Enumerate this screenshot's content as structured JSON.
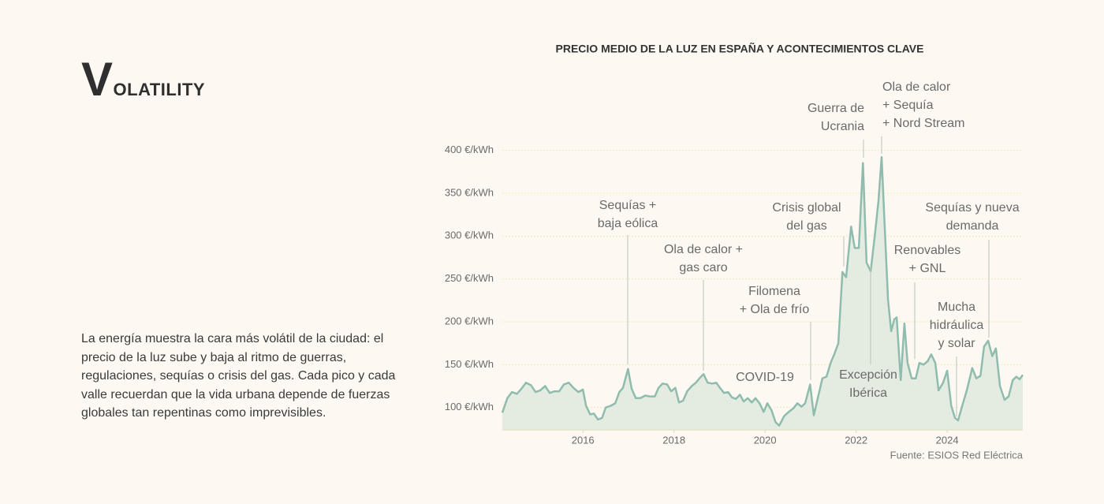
{
  "heading": "VOLATILITY",
  "paragraph": "La energía muestra la cara más volátil de la ciudad: el precio de la luz sube y baja al ritmo de guerras, regulaciones, sequías o crisis del gas. Cada pico y cada valle recuerdan que la vida urbana depende de fuerzas globales tan repentinas como imprevisibles.",
  "chart_data": {
    "type": "area",
    "title": "PRECIO MEDIO DE LA LUZ EN ESPAÑA Y ACONTECIMIENTOS CLAVE",
    "source": "Fuente: ESIOS Red Eléctrica",
    "color": "#8fbcae",
    "fill": "#e4ebe1",
    "grid": true,
    "xlim": [
      2014.23,
      2025.66
    ],
    "xticks": [
      2016,
      2018,
      2020,
      2022,
      2024
    ],
    "ylim": [
      74,
      405
    ],
    "yticks": [
      {
        "value": 100,
        "label": "100 €/kWh"
      },
      {
        "value": 150,
        "label": "150 €/kWh"
      },
      {
        "value": 200,
        "label": "200 €/kWh"
      },
      {
        "value": 250,
        "label": "250 €/kWh"
      },
      {
        "value": 300,
        "label": "300 €/kWh"
      },
      {
        "value": 350,
        "label": "350 €/kWh"
      },
      {
        "value": 400,
        "label": "400 €/kWh"
      }
    ],
    "x": [
      2014.23,
      2014.34,
      2014.44,
      2014.55,
      2014.65,
      2014.75,
      2014.86,
      2014.96,
      2015.06,
      2015.17,
      2015.27,
      2015.38,
      2015.48,
      2015.58,
      2015.69,
      2015.79,
      2015.9,
      2016.0,
      2016.07,
      2016.16,
      2016.24,
      2016.33,
      2016.42,
      2016.5,
      2016.61,
      2016.71,
      2016.8,
      2016.88,
      2016.99,
      2017.07,
      2017.16,
      2017.26,
      2017.37,
      2017.47,
      2017.58,
      2017.66,
      2017.75,
      2017.85,
      2017.94,
      2018.03,
      2018.11,
      2018.2,
      2018.29,
      2018.39,
      2018.48,
      2018.56,
      2018.65,
      2018.74,
      2018.84,
      2018.93,
      2019.01,
      2019.1,
      2019.19,
      2019.27,
      2019.36,
      2019.45,
      2019.53,
      2019.62,
      2019.71,
      2019.79,
      2019.88,
      2019.97,
      2020.05,
      2020.14,
      2020.23,
      2020.31,
      2020.42,
      2020.52,
      2020.62,
      2020.71,
      2020.8,
      2020.88,
      2020.99,
      2021.07,
      2021.18,
      2021.26,
      2021.35,
      2021.44,
      2021.52,
      2021.61,
      2021.7,
      2021.78,
      2021.89,
      2021.97,
      2022.06,
      2022.15,
      2022.23,
      2022.32,
      2022.41,
      2022.49,
      2022.56,
      2022.63,
      2022.7,
      2022.77,
      2022.84,
      2022.89,
      2022.98,
      2023.06,
      2023.13,
      2023.22,
      2023.31,
      2023.39,
      2023.48,
      2023.57,
      2023.65,
      2023.74,
      2023.81,
      2023.91,
      2024.0,
      2024.09,
      2024.17,
      2024.24,
      2024.33,
      2024.43,
      2024.55,
      2024.64,
      2024.73,
      2024.81,
      2024.9,
      2024.99,
      2025.07,
      2025.16,
      2025.26,
      2025.35,
      2025.44,
      2025.52,
      2025.59,
      2025.66
    ],
    "values": [
      94,
      111,
      118,
      116,
      122,
      129,
      126,
      118,
      120,
      125,
      117,
      119,
      119,
      127,
      129,
      123,
      118,
      121,
      102,
      92,
      93,
      86,
      88,
      100,
      102,
      105,
      118,
      123,
      145,
      122,
      111,
      111,
      114,
      113,
      113,
      123,
      128,
      127,
      119,
      123,
      106,
      108,
      119,
      125,
      129,
      134,
      139,
      129,
      128,
      129,
      123,
      117,
      118,
      112,
      110,
      115,
      107,
      111,
      106,
      111,
      105,
      95,
      105,
      97,
      83,
      79,
      90,
      95,
      99,
      105,
      101,
      105,
      127,
      91,
      116,
      134,
      136,
      152,
      162,
      175,
      258,
      252,
      311,
      286,
      286,
      385,
      269,
      259,
      300,
      341,
      392,
      309,
      226,
      189,
      203,
      205,
      132,
      198,
      152,
      134,
      134,
      152,
      150,
      154,
      162,
      152,
      120,
      129,
      143,
      102,
      88,
      85,
      102,
      120,
      146,
      134,
      137,
      171,
      178,
      160,
      169,
      125,
      109,
      113,
      132,
      136,
      133,
      138
    ],
    "annotations": [
      {
        "lines": [
          "Sequías +",
          "baja eólica"
        ]
      },
      {
        "lines": [
          "Ola de calor +",
          "gas caro"
        ]
      },
      {
        "lines": [
          "Filomena",
          "+ Ola de frío"
        ]
      },
      {
        "lines": [
          "COVID-19"
        ]
      },
      {
        "lines": [
          "Crisis global",
          "del gas"
        ]
      },
      {
        "lines": [
          "Guerra de",
          "Ucrania"
        ]
      },
      {
        "lines": [
          "Ola de calor",
          "+ Sequía",
          "+ Nord Stream"
        ]
      },
      {
        "lines": [
          "Excepción",
          "Ibérica"
        ]
      },
      {
        "lines": [
          "Renovables",
          "+ GNL"
        ]
      },
      {
        "lines": [
          "Mucha",
          "hidráulica",
          "y solar"
        ]
      },
      {
        "lines": [
          "Sequías y nueva",
          "demanda"
        ]
      }
    ]
  }
}
